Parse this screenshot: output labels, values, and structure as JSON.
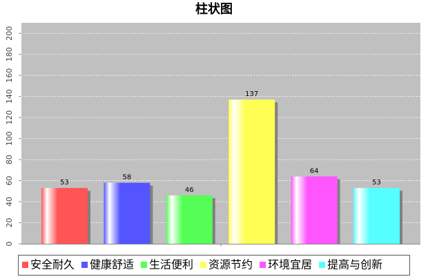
{
  "chart_data": {
    "type": "bar",
    "title": "柱状图",
    "categories": [
      null
    ],
    "series": [
      {
        "name": "安全耐久",
        "color": "#ff5555",
        "values": [
          53
        ]
      },
      {
        "name": "健康舒适",
        "color": "#5555ff",
        "values": [
          58
        ]
      },
      {
        "name": "生活便利",
        "color": "#55ff55",
        "values": [
          46
        ]
      },
      {
        "name": "资源节约",
        "color": "#ffff55",
        "values": [
          137
        ]
      },
      {
        "name": "环境宜居",
        "color": "#ff55ff",
        "values": [
          64
        ]
      },
      {
        "name": "提高与创新",
        "color": "#55ffff",
        "values": [
          53
        ]
      }
    ],
    "ylim": [
      0,
      210
    ],
    "yticks": [
      0,
      20,
      40,
      60,
      80,
      100,
      120,
      140,
      160,
      180,
      200
    ],
    "grid": true,
    "legend": "bottom"
  }
}
